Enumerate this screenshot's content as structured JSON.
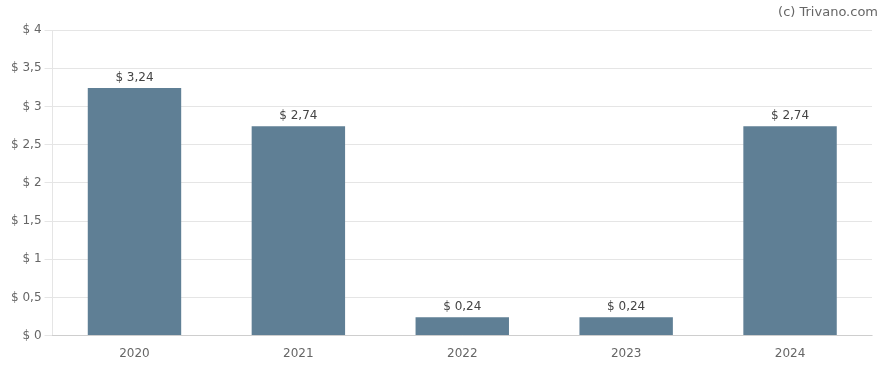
{
  "chart_data": {
    "type": "bar",
    "categories": [
      "2020",
      "2021",
      "2022",
      "2023",
      "2024"
    ],
    "values": [
      3.24,
      2.74,
      0.24,
      0.24,
      2.74
    ],
    "value_labels": [
      "$ 3,24",
      "$ 2,74",
      "$ 0,24",
      "$ 0,24",
      "$ 2,74"
    ],
    "data_labels": true,
    "color": "#5f7f95",
    "ylim": [
      0,
      4.0
    ],
    "yticks": [
      {
        "value": 0,
        "label": "$ 0"
      },
      {
        "value": 0.5,
        "label": "$ 0,5"
      },
      {
        "value": 1.0,
        "label": "$ 1"
      },
      {
        "value": 1.5,
        "label": "$ 1,5"
      },
      {
        "value": 2.0,
        "label": "$ 2"
      },
      {
        "value": 2.5,
        "label": "$ 2,5"
      },
      {
        "value": 3.0,
        "label": "$ 3"
      },
      {
        "value": 3.5,
        "label": "$ 3,5"
      },
      {
        "value": 4.0,
        "label": "$ 4"
      }
    ],
    "grid": true,
    "annotations": [
      "(c) Trivano.com"
    ]
  }
}
